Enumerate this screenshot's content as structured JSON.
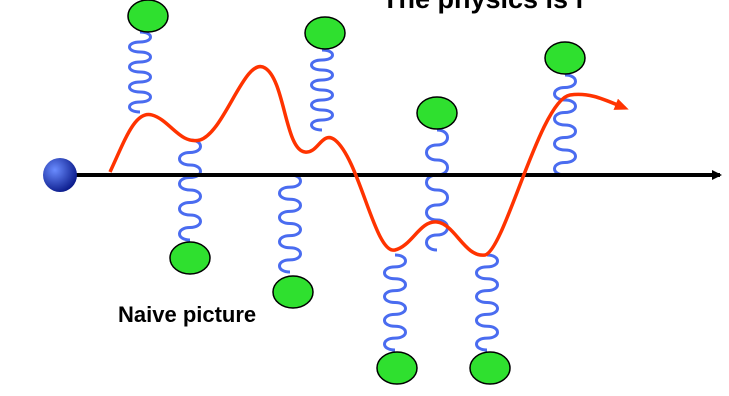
{
  "title": "The physics is i",
  "caption": "Naive picture"
}
